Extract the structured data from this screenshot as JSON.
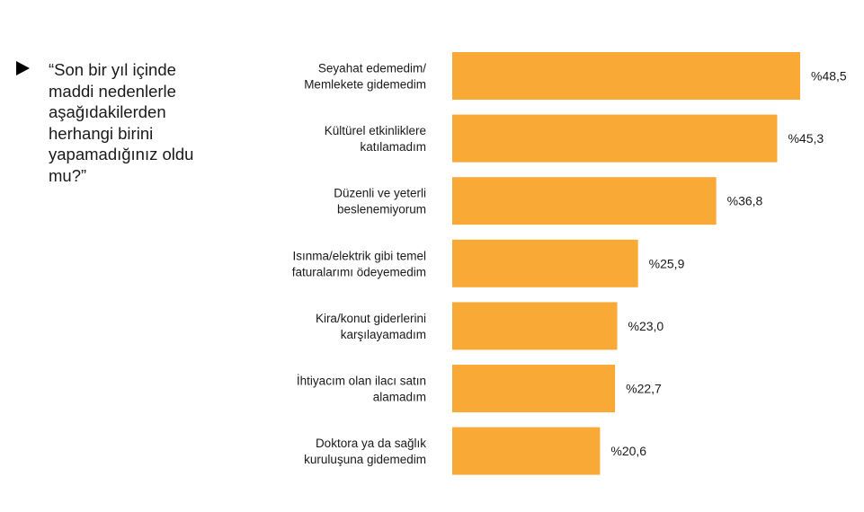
{
  "question": {
    "text": "“Son bir yıl içinde\nmaddi nedenlerle\naşağıdakilerden\nherhangi birini\nyapamadığınız oldu\nmu?”"
  },
  "colors": {
    "bar": "#F9A935"
  },
  "chart_data": {
    "type": "bar",
    "orientation": "horizontal",
    "title": "",
    "xlabel": "",
    "ylabel": "",
    "value_prefix": "%",
    "grid": false,
    "xlim": [
      0,
      50
    ],
    "categories": [
      [
        "Seyahat edemedim/",
        "Memlekete gidemedim"
      ],
      [
        "Kültürel etkinliklere",
        "katılamadım"
      ],
      [
        "Düzenli ve yeterli",
        "beslenemiyorum"
      ],
      [
        "Isınma/elektrik gibi temel",
        "faturalarımı ödeyemedim"
      ],
      [
        "Kira/konut giderlerini",
        "karşılayamadım"
      ],
      [
        "İhtiyacım olan ilacı satın",
        "alamadım"
      ],
      [
        "Doktora ya da sağlık",
        "kuruluşuna gidemedim"
      ]
    ],
    "values": [
      48.5,
      45.3,
      36.8,
      25.9,
      23.0,
      22.7,
      20.6
    ],
    "value_labels": [
      "%48,5",
      "%45,3",
      "%36,8",
      "%25,9",
      "%23,0",
      "%22,7",
      "%20,6"
    ]
  }
}
